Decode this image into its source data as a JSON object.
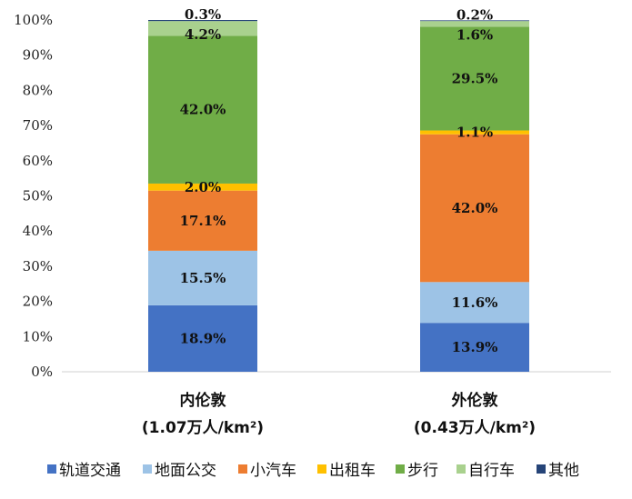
{
  "chart_data": {
    "type": "stacked-bar",
    "categories": [
      {
        "name": "内伦敦",
        "sub": "(1.07万人/km²)"
      },
      {
        "name": "外伦敦",
        "sub": "(0.43万人/km²)"
      }
    ],
    "series": [
      {
        "name": "轨道交通",
        "color": "#4472C4",
        "values": [
          18.9,
          13.9
        ]
      },
      {
        "name": "地面公交",
        "color": "#9DC3E6",
        "values": [
          15.5,
          11.6
        ]
      },
      {
        "name": "小汽车",
        "color": "#ED7D31",
        "values": [
          17.1,
          42.0
        ]
      },
      {
        "name": "出租车",
        "color": "#FFC000",
        "values": [
          2.0,
          1.1
        ]
      },
      {
        "name": "步行",
        "color": "#70AD47",
        "values": [
          42.0,
          29.5
        ]
      },
      {
        "name": "自行车",
        "color": "#A9D18E",
        "values": [
          4.2,
          1.6
        ]
      },
      {
        "name": "其他",
        "color": "#264478",
        "values": [
          0.3,
          0.2
        ]
      }
    ],
    "yticks": [
      "0%",
      "10%",
      "20%",
      "30%",
      "40%",
      "50%",
      "60%",
      "70%",
      "80%",
      "90%",
      "100%"
    ],
    "ylim": [
      0,
      100
    ],
    "grid": false,
    "legend": "bottom"
  }
}
